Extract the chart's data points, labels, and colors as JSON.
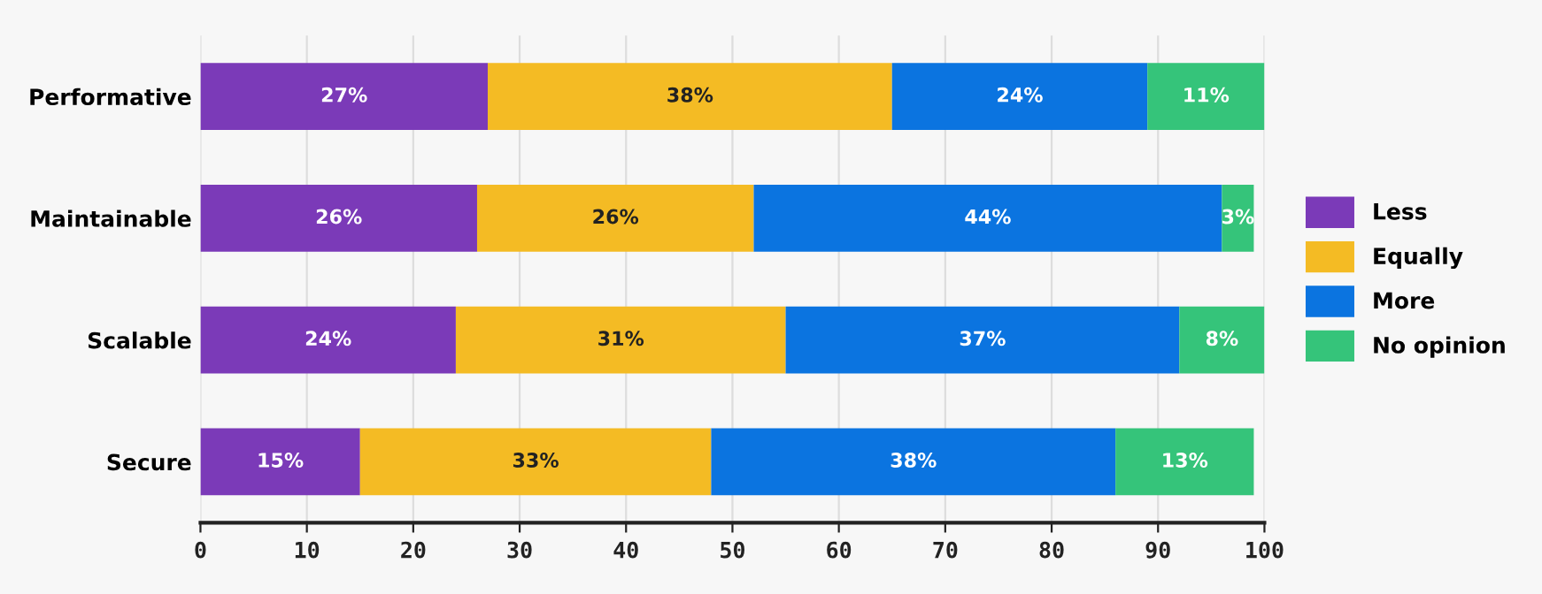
{
  "chart_data": {
    "type": "bar",
    "orientation": "horizontal",
    "stacked": true,
    "categories": [
      "Performative",
      "Maintainable",
      "Scalable",
      "Secure"
    ],
    "series": [
      {
        "name": "Less",
        "color": "#7b3ab8",
        "values": [
          27,
          26,
          24,
          15
        ],
        "value_labels": [
          "27%",
          "26%",
          "24%",
          "15%"
        ]
      },
      {
        "name": "Equally",
        "color": "#f4bb24",
        "values": [
          38,
          26,
          31,
          33
        ],
        "value_labels": [
          "38%",
          "26%",
          "31%",
          "33%"
        ]
      },
      {
        "name": "More",
        "color": "#0b74e0",
        "values": [
          24,
          44,
          37,
          38
        ],
        "value_labels": [
          "24%",
          "44%",
          "37%",
          "38%"
        ]
      },
      {
        "name": "No opinion",
        "color": "#35c47a",
        "values": [
          11,
          3,
          8,
          13
        ],
        "value_labels": [
          "11%",
          "3%",
          "8%",
          "13%"
        ]
      }
    ],
    "xlim": [
      0,
      100
    ],
    "xticks": [
      0,
      10,
      20,
      30,
      40,
      50,
      60,
      70,
      80,
      90,
      100
    ],
    "grid": "x",
    "legend": "right"
  }
}
